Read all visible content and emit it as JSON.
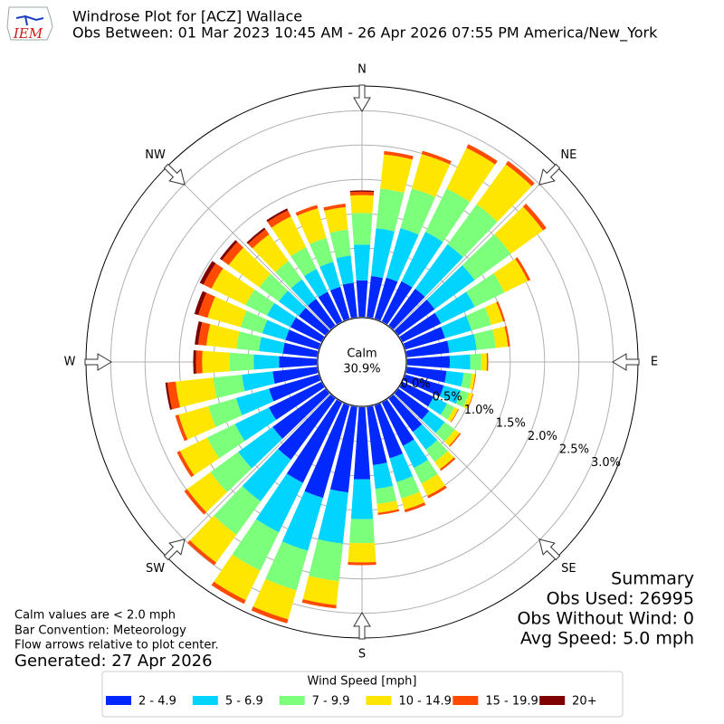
{
  "chart_data": {
    "type": "windrose",
    "logo_text": "IEM",
    "title": "Windrose Plot for [ACZ] Wallace",
    "subtitle": "Obs Between: 01 Mar 2023 10:45 AM - 26 Apr 2026 07:55 PM America/New_York",
    "calm_label": "Calm",
    "calm_value": 30.9,
    "calm_value_label": "30.9%",
    "x": [
      0,
      10,
      20,
      30,
      40,
      50,
      60,
      70,
      80,
      90,
      100,
      110,
      120,
      130,
      140,
      150,
      160,
      170,
      180,
      190,
      200,
      210,
      220,
      230,
      240,
      250,
      260,
      270,
      280,
      290,
      300,
      310,
      320,
      330,
      340,
      350
    ],
    "xticks": [
      {
        "value": 0,
        "label": "N"
      },
      {
        "value": 45,
        "label": "NE"
      },
      {
        "value": 90,
        "label": "E"
      },
      {
        "value": 135,
        "label": "SE"
      },
      {
        "value": 180,
        "label": "S"
      },
      {
        "value": 225,
        "label": "SW"
      },
      {
        "value": 270,
        "label": "W"
      },
      {
        "value": 315,
        "label": "NW"
      }
    ],
    "ylim": [
      0,
      3.36
    ],
    "yticks": [
      {
        "value": 0,
        "label": "0.0%"
      },
      {
        "value": 0.5,
        "label": "0.5%"
      },
      {
        "value": 1,
        "label": "1.0%"
      },
      {
        "value": 1.5,
        "label": "1.5%"
      },
      {
        "value": 2,
        "label": "2.0%"
      },
      {
        "value": 2.5,
        "label": "2.5%"
      },
      {
        "value": 3,
        "label": "3.0%"
      }
    ],
    "grid": true,
    "legend_title": "Wind Speed [mph]",
    "series": [
      {
        "name": "2 - 4.9",
        "color": "#0028ff",
        "values": [
          0.53,
          0.6,
          0.62,
          0.65,
          0.66,
          0.65,
          0.62,
          0.6,
          0.62,
          0.62,
          0.58,
          0.58,
          0.5,
          0.55,
          0.6,
          0.7,
          0.8,
          0.85,
          1.05,
          1.25,
          1.4,
          1.3,
          1.1,
          0.95,
          0.85,
          0.75,
          0.65,
          0.55,
          0.5,
          0.5,
          0.5,
          0.48,
          0.48,
          0.48,
          0.48,
          0.5
        ]
      },
      {
        "name": "5 - 6.9",
        "color": "#00d4ff",
        "values": [
          0.52,
          0.7,
          0.75,
          0.8,
          0.8,
          0.72,
          0.55,
          0.4,
          0.4,
          0.3,
          0.25,
          0.26,
          0.22,
          0.28,
          0.32,
          0.36,
          0.36,
          0.35,
          0.58,
          0.75,
          0.8,
          0.8,
          0.75,
          0.62,
          0.55,
          0.5,
          0.45,
          0.37,
          0.35,
          0.35,
          0.38,
          0.36,
          0.35,
          0.37,
          0.38,
          0.4
        ]
      },
      {
        "name": "7 - 9.9",
        "color": "#7cff7a",
        "values": [
          0.46,
          0.58,
          0.6,
          0.7,
          0.72,
          0.65,
          0.48,
          0.3,
          0.28,
          0.16,
          0.12,
          0.12,
          0.12,
          0.18,
          0.22,
          0.25,
          0.25,
          0.22,
          0.35,
          0.55,
          0.6,
          0.62,
          0.6,
          0.5,
          0.45,
          0.42,
          0.42,
          0.35,
          0.33,
          0.33,
          0.35,
          0.35,
          0.33,
          0.35,
          0.36,
          0.38
        ]
      },
      {
        "name": "10 - 14.9",
        "color": "#ffe600",
        "values": [
          0.26,
          0.5,
          0.52,
          0.66,
          0.72,
          0.58,
          0.38,
          0.18,
          0.18,
          0.08,
          0.05,
          0.06,
          0.06,
          0.09,
          0.13,
          0.2,
          0.17,
          0.13,
          0.28,
          0.35,
          0.44,
          0.48,
          0.5,
          0.42,
          0.44,
          0.45,
          0.55,
          0.4,
          0.44,
          0.5,
          0.55,
          0.55,
          0.48,
          0.5,
          0.45,
          0.33
        ]
      },
      {
        "name": "15 - 19.9",
        "color": "#ff4a00",
        "values": [
          0.05,
          0.05,
          0.05,
          0.06,
          0.06,
          0.06,
          0.04,
          0.03,
          0.03,
          0.02,
          0.01,
          0.01,
          0.01,
          0.02,
          0.03,
          0.04,
          0.04,
          0.03,
          0.04,
          0.05,
          0.06,
          0.06,
          0.05,
          0.05,
          0.05,
          0.05,
          0.12,
          0.09,
          0.12,
          0.14,
          0.13,
          0.12,
          0.09,
          0.1,
          0.05,
          0.05
        ]
      },
      {
        "name": "20+",
        "color": "#800000",
        "values": [
          0.02,
          0,
          0,
          0,
          0,
          0,
          0,
          0,
          0,
          0,
          0,
          0,
          0,
          0,
          0,
          0,
          0,
          0,
          0,
          0,
          0,
          0,
          0,
          0,
          0,
          0,
          0.03,
          0.04,
          0.05,
          0.06,
          0.06,
          0.04,
          0.03,
          0.03,
          0,
          0
        ]
      }
    ],
    "notes": [
      "Calm values are < 2.0 mph",
      "Bar Convention: Meteorology",
      "Flow arrows relative to plot center."
    ],
    "generated": "Generated: 27 Apr 2026",
    "summary_title": "Summary",
    "summary_lines": [
      "Obs Used: 26995",
      "Obs Without Wind: 0",
      "Avg Speed: 5.0 mph"
    ]
  }
}
